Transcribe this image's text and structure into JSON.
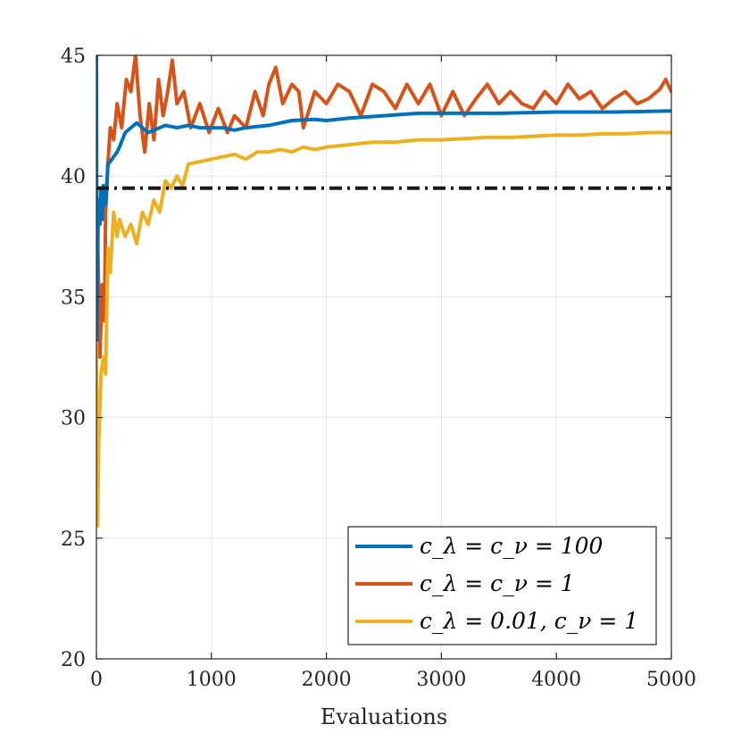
{
  "chart_data": {
    "type": "line",
    "title": "",
    "xlabel": "Evaluations",
    "ylabel": "",
    "xlim": [
      0,
      5000
    ],
    "ylim": [
      20,
      45
    ],
    "xticks": [
      0,
      1000,
      2000,
      3000,
      4000,
      5000
    ],
    "yticks": [
      20,
      25,
      30,
      35,
      40,
      45
    ],
    "grid": true,
    "legend_position": "bottom-right",
    "reference_line": {
      "y": 39.5,
      "style": "dash-dot",
      "color": "#1a1a1a"
    },
    "series": [
      {
        "name": "c_λ = c_ν = 100",
        "color": "#0072BD",
        "x": [
          0,
          5,
          10,
          15,
          20,
          30,
          40,
          50,
          60,
          80,
          100,
          120,
          150,
          180,
          200,
          250,
          300,
          350,
          400,
          450,
          500,
          600,
          700,
          800,
          900,
          1000,
          1100,
          1200,
          1300,
          1500,
          1700,
          1900,
          2000,
          2200,
          2500,
          2800,
          3000,
          3500,
          4000,
          4500,
          5000
        ],
        "y": [
          45.0,
          33.2,
          36.0,
          38.5,
          39.0,
          38.0,
          39.5,
          38.2,
          39.6,
          38.8,
          40.5,
          40.6,
          40.8,
          41.0,
          41.2,
          41.8,
          42.0,
          42.2,
          42.0,
          41.8,
          41.9,
          42.1,
          42.0,
          42.1,
          42.0,
          42.0,
          42.0,
          41.9,
          42.0,
          42.1,
          42.3,
          42.35,
          42.3,
          42.4,
          42.5,
          42.6,
          42.6,
          42.6,
          42.65,
          42.65,
          42.7
        ]
      },
      {
        "name": "c_λ = c_ν = 1",
        "color": "#D95319",
        "x": [
          0,
          30,
          50,
          70,
          80,
          100,
          120,
          150,
          180,
          220,
          260,
          300,
          340,
          380,
          420,
          460,
          500,
          540,
          580,
          620,
          660,
          700,
          760,
          820,
          900,
          980,
          1060,
          1140,
          1200,
          1300,
          1380,
          1450,
          1500,
          1560,
          1620,
          1700,
          1760,
          1800,
          1900,
          2000,
          2100,
          2200,
          2300,
          2400,
          2500,
          2600,
          2700,
          2800,
          2900,
          3000,
          3100,
          3200,
          3300,
          3400,
          3500,
          3600,
          3700,
          3800,
          3900,
          4000,
          4100,
          4200,
          4300,
          4400,
          4500,
          4600,
          4700,
          4800,
          4900,
          4950,
          5000
        ],
        "y": [
          40.0,
          32.5,
          35.5,
          34.0,
          38.5,
          40.5,
          42.0,
          41.5,
          43.0,
          42.0,
          44.0,
          43.5,
          45.0,
          42.5,
          41.0,
          43.0,
          41.5,
          44.0,
          42.5,
          43.5,
          44.8,
          43.0,
          43.5,
          42.0,
          43.0,
          41.8,
          42.8,
          41.8,
          42.5,
          42.0,
          43.5,
          42.5,
          43.8,
          44.5,
          43.0,
          43.8,
          43.5,
          42.0,
          43.5,
          43.0,
          43.8,
          43.5,
          42.5,
          43.8,
          43.5,
          42.8,
          43.8,
          43.0,
          43.8,
          42.5,
          43.5,
          42.5,
          43.2,
          43.8,
          43.0,
          43.5,
          43.0,
          42.8,
          43.5,
          43.0,
          43.8,
          43.2,
          43.5,
          42.8,
          43.2,
          43.5,
          43.0,
          43.2,
          43.6,
          44.0,
          43.5
        ]
      },
      {
        "name": "c_λ = 0.01, c_ν = 1",
        "color": "#EDB120",
        "x": [
          0,
          10,
          20,
          40,
          60,
          80,
          100,
          120,
          150,
          180,
          200,
          250,
          300,
          350,
          400,
          450,
          500,
          550,
          600,
          650,
          700,
          750,
          800,
          900,
          1000,
          1100,
          1200,
          1300,
          1400,
          1500,
          1600,
          1700,
          1800,
          1900,
          2000,
          2200,
          2400,
          2600,
          2800,
          3000,
          3200,
          3400,
          3600,
          3800,
          4000,
          4200,
          4400,
          4600,
          4800,
          5000
        ],
        "y": [
          33.0,
          25.5,
          29.0,
          31.8,
          32.5,
          31.8,
          37.0,
          36.0,
          38.5,
          37.5,
          38.2,
          37.5,
          38.0,
          37.2,
          38.5,
          38.0,
          39.0,
          38.5,
          39.8,
          39.5,
          40.0,
          39.6,
          40.5,
          40.6,
          40.7,
          40.8,
          40.9,
          40.7,
          41.0,
          41.0,
          41.1,
          41.0,
          41.2,
          41.1,
          41.2,
          41.3,
          41.4,
          41.4,
          41.5,
          41.5,
          41.55,
          41.6,
          41.6,
          41.65,
          41.7,
          41.7,
          41.75,
          41.75,
          41.8,
          41.8
        ]
      }
    ]
  },
  "legend": {
    "entries": [
      {
        "label": "c_λ = c_ν = 100",
        "color": "#0072BD"
      },
      {
        "label": "c_λ = c_ν = 1",
        "color": "#D95319"
      },
      {
        "label": "c_λ = 0.01, c_ν = 1",
        "color": "#EDB120"
      }
    ]
  }
}
